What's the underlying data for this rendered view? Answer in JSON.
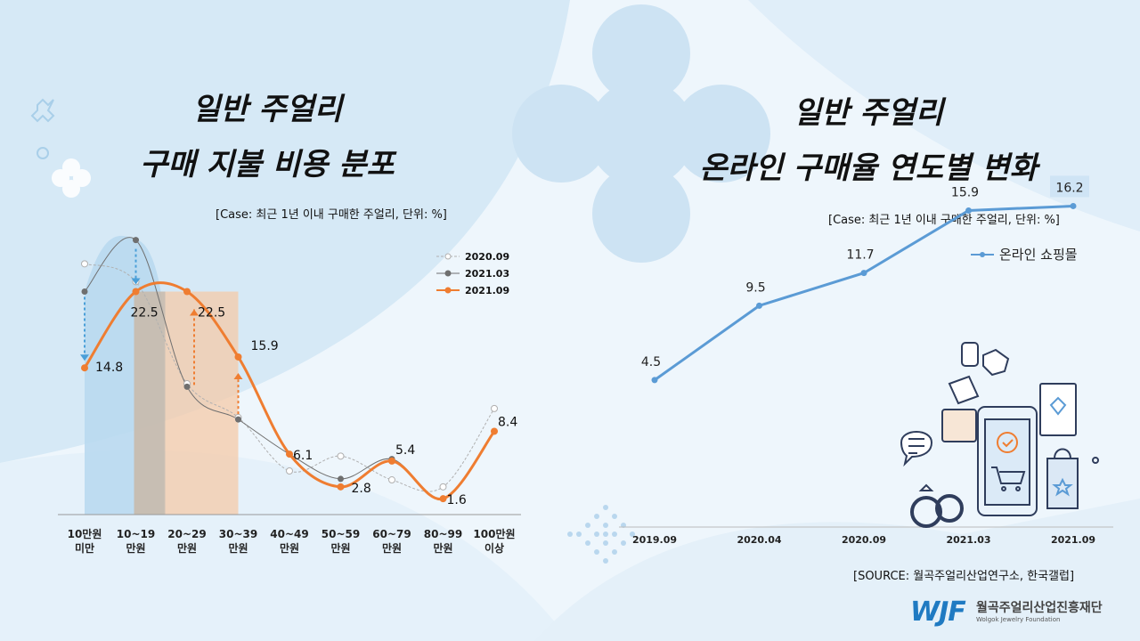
{
  "left_title_line1": "일반 주얼리",
  "left_title_line2": "구매 지불 비용 분포",
  "left_case": "[Case: 최근 1년 이내 구매한 주얼리, 단위: %]",
  "right_title_line1": "일반 주얼리",
  "right_title_line2": "온라인 구매율 연도별 변화",
  "right_case": "[Case: 최근 1년 이내 구매한 주얼리, 단위: %]",
  "source": "[SOURCE: 월곡주얼리산업연구소, 한국갤럽]",
  "logo": {
    "mark": "WJF",
    "name_ko": "월곡주얼리산업진흥재단",
    "name_en": "Wolgok Jewelry Foundation"
  },
  "colors": {
    "s2020": "#b0b0b0",
    "s2103": "#6f6f6f",
    "s2109": "#ef7d31",
    "online": "#5b9bd5"
  },
  "chart_data": [
    {
      "type": "line",
      "categories": [
        "10만원\n미만",
        "10~19\n만원",
        "20~29\n만원",
        "30~39\n만원",
        "40~49\n만원",
        "50~59\n만원",
        "60~79\n만원",
        "80~99\n만원",
        "100만원\n이상"
      ],
      "series": [
        {
          "name": "2020.09",
          "values": [
            25.3,
            23.5,
            13.2,
            9.8,
            4.4,
            5.9,
            3.5,
            2.8,
            10.7
          ]
        },
        {
          "name": "2021.03",
          "values": [
            22.5,
            27.7,
            12.9,
            9.6,
            6.1,
            3.6,
            5.6,
            1.6,
            8.4
          ]
        },
        {
          "name": "2021.09",
          "values": [
            14.8,
            22.5,
            22.5,
            15.9,
            6.1,
            2.8,
            5.4,
            1.6,
            8.4
          ],
          "data_labels": [
            "14.8",
            "22.5",
            "22.5",
            "15.9",
            "6.1",
            "2.8",
            "5.4",
            "1.6",
            "8.4"
          ]
        }
      ],
      "ylim": [
        0,
        30
      ],
      "legend": "top-right",
      "grid": false
    },
    {
      "type": "line",
      "categories": [
        "2019.09",
        "2020.04",
        "2020.09",
        "2021.03",
        "2021.09"
      ],
      "series": [
        {
          "name": "온라인 쇼핑몰",
          "values": [
            4.5,
            9.5,
            11.7,
            15.9,
            16.2
          ],
          "data_labels": [
            "4.5",
            "9.5",
            "11.7",
            "15.9",
            "16.2"
          ]
        }
      ],
      "ylim": [
        0,
        20
      ],
      "legend": "top-right",
      "grid": false
    }
  ]
}
